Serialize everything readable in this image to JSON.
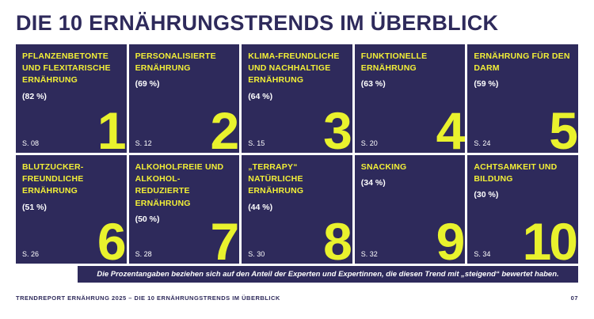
{
  "page": {
    "title": "DIE 10 ERNÄHRUNGSTRENDS IM ÜBERBLICK",
    "note": "Die Prozentangaben beziehen sich auf den Anteil der Experten und Expertinnen, die diesen Trend mit „steigend“ bewertet haben.",
    "footer_left": "TRENDREPORT ERNÄHRUNG 2025 – DIE 10 ERNÄHRUNGSTRENDS IM ÜBERBLICK",
    "footer_page": "07"
  },
  "colors": {
    "navy": "#2e2a5b",
    "yellow_title": "#f2ef37",
    "yellow_number": "#e9f22d",
    "white": "#ffffff"
  },
  "cards": [
    {
      "rank": "1",
      "title": "PFLANZENBETONTE UND FLEXITARISCHE ERNÄHRUNG",
      "percent": "(82 %)",
      "page_ref": "S. 08"
    },
    {
      "rank": "2",
      "title": "PERSONALISIERTE ERNÄHRUNG",
      "percent": "(69 %)",
      "page_ref": "S. 12"
    },
    {
      "rank": "3",
      "title": "KLIMA-FREUNDLICHE UND NACHHALTIGE ERNÄHRUNG",
      "percent": "(64 %)",
      "page_ref": "S. 15"
    },
    {
      "rank": "4",
      "title": "FUNKTIONELLE ERNÄHRUNG",
      "percent": "(63 %)",
      "page_ref": "S. 20"
    },
    {
      "rank": "5",
      "title": "ERNÄHRUNG FÜR DEN DARM",
      "percent": "(59 %)",
      "page_ref": "S. 24"
    },
    {
      "rank": "6",
      "title": "BLUTZUCKER-FREUNDLICHE ERNÄHRUNG",
      "percent": "(51 %)",
      "page_ref": "S. 26"
    },
    {
      "rank": "7",
      "title": "ALKOHOLFREIE UND ALKOHOL-REDUZIERTE ERNÄHRUNG",
      "percent": "(50 %)",
      "page_ref": "S. 28"
    },
    {
      "rank": "8",
      "title": "„TERRAPY“ NATÜRLICHE ERNÄHRUNG",
      "percent": "(44 %)",
      "page_ref": "S. 30"
    },
    {
      "rank": "9",
      "title": "SNACKING",
      "percent": "(34 %)",
      "page_ref": "S. 32"
    },
    {
      "rank": "10",
      "title": "ACHTSAMKEIT UND BILDUNG",
      "percent": "(30 %)",
      "page_ref": "S. 34"
    }
  ]
}
